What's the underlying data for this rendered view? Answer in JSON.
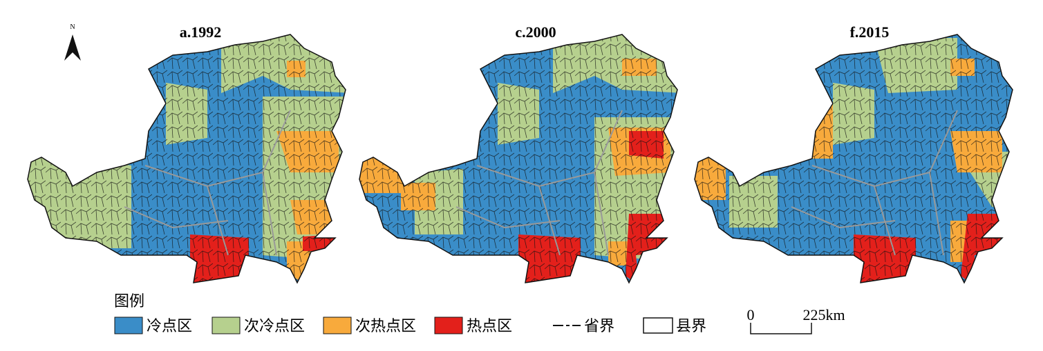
{
  "maps": [
    {
      "title": "a.1992"
    },
    {
      "title": "c.2000"
    },
    {
      "title": "f.2015"
    }
  ],
  "north": "N",
  "legend": {
    "title": "图例",
    "items": [
      {
        "label": "冷点区",
        "color": "#3a8dc8"
      },
      {
        "label": "次冷点区",
        "color": "#b6d08e"
      },
      {
        "label": "次热点区",
        "color": "#f8aa3c"
      },
      {
        "label": "热点区",
        "color": "#e3201b"
      }
    ],
    "lines": [
      {
        "label": "省界"
      },
      {
        "label": "县界"
      }
    ]
  },
  "scale_bar": {
    "labels": [
      "0",
      "225km"
    ]
  }
}
